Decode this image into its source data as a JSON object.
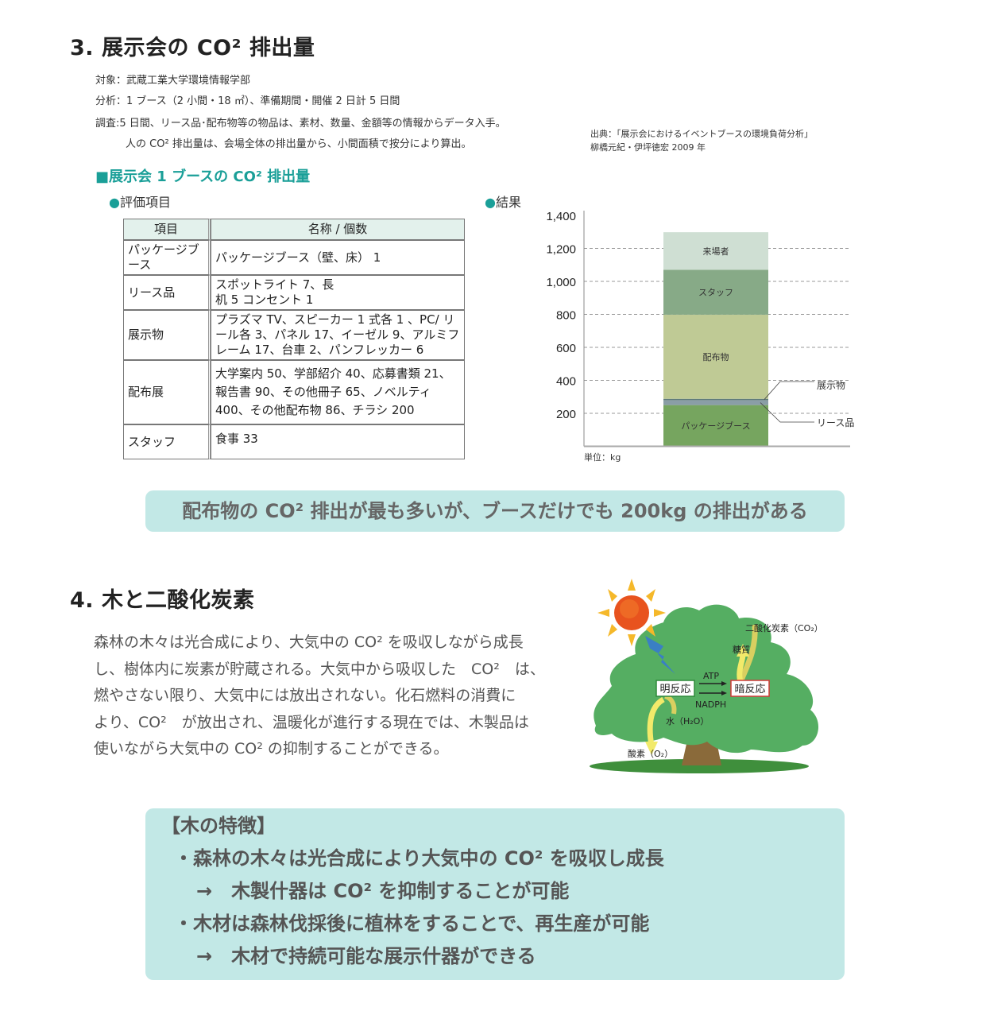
{
  "section3": {
    "title": "3. 展示会の CO² 排出量",
    "info": [
      "対象：武蔵工業大学環境情報学部",
      "分析：1 ブース（2 小間・18 ㎡）、準備期間・開催 2 日計 5 日間",
      "調査:5 日間、リース品･配布物等の物品は、素材、数量、金額等の情報からデータ入手。",
      "人の CO² 排出量は、会場全体の排出量から、小間面積で按分により算出。"
    ],
    "source": [
      "出典：「展示会におけるイベントブースの環境負荷分析」",
      "柳橋元紀・伊坪徳宏 2009 年"
    ],
    "subheading": "■展示会 1 ブースの CO² 排出量",
    "eval_label": "評価項目",
    "result_label": "結果",
    "bullet": "●",
    "table": {
      "headers": [
        "項目",
        "名称 / 個数"
      ],
      "rows": [
        [
          "パッケージブース",
          "パッケージブース（壁、床） 1"
        ],
        [
          "リース品",
          "スポットライト 7、長机 5 コンセント 1"
        ],
        [
          "展示物",
          "プラズマ TV、スピーカー 1 式各 1 、PC/ リール各 3、パネル 17、イーゼル 9、アルミフレーム 17、台車 2、パンフレッカー 6"
        ],
        [
          "配布展",
          "大学案内 50、学部紹介 40、応募書類 21、報告書 90、その他冊子 65、ノベルティ 400、その他配布物 86、チラシ 200"
        ],
        [
          "スタッフ",
          "食事 33"
        ]
      ]
    },
    "conclusion": "配布物の CO² 排出が最も多いが、ブースだけでも 200kg の排出がある"
  },
  "chart_data": {
    "type": "bar",
    "stacked": true,
    "categories": [
      ""
    ],
    "series": [
      {
        "name": "パッケージブース",
        "values": [
          250
        ],
        "color": "#76a55f"
      },
      {
        "name": "リース品",
        "values": [
          30
        ],
        "color": "#8a9ea6"
      },
      {
        "name": "展示物",
        "values": [
          8
        ],
        "color": "#5e7a78"
      },
      {
        "name": "配布物",
        "values": [
          510
        ],
        "color": "#bfca95"
      },
      {
        "name": "スタッフ",
        "values": [
          272
        ],
        "color": "#87aa87"
      },
      {
        "name": "来場者",
        "values": [
          228
        ],
        "color": "#cfdfd3"
      }
    ],
    "yticks": [
      "200",
      "400",
      "600",
      "800",
      "1,000",
      "1,200",
      "1,400"
    ],
    "ylim": [
      0,
      1400
    ],
    "grid": "dashed horizontal",
    "unit_label": "単位：kg",
    "callout_labels": [
      "展示物",
      "リース品"
    ]
  },
  "section4": {
    "title": "4. 木と二酸化炭素",
    "paragraph": [
      "森林の木々は光合成により、大気中の CO² を吸収しながら成長",
      "し、樹体内に炭素が貯蔵される。大気中から吸収した　CO²　は、",
      "燃やさない限り、大気中には放出されない。化石燃料の消費に",
      "より、CO²　が放出され、温暖化が進行する現在では、木製品は",
      "使いながら大気中の CO² の抑制することができる。"
    ],
    "diagram": {
      "co2": "二酸化炭素（CO₂）",
      "sugar": "糖質",
      "atp": "ATP",
      "nadph": "NADPH",
      "light": "明反応",
      "dark": "暗反応",
      "water": "水（H₂O）",
      "oxygen": "酸素（O₂）"
    },
    "features": [
      "【木の特徴】",
      "・森林の木々は光合成により大気中の CO² を吸収し成長",
      "→　木製什器は CO² を抑制することが可能",
      "・木材は森林伐採後に植林をすることで、再生産が可能",
      "→　木材で持続可能な展示什器ができる"
    ]
  }
}
